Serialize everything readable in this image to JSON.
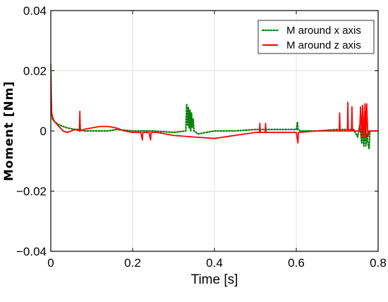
{
  "chart_data": {
    "type": "line",
    "xlabel": "Time [s]",
    "ylabel": "Moment [Nm]",
    "xlim": [
      0,
      0.8
    ],
    "ylim": [
      -0.04,
      0.04
    ],
    "x_ticks": [
      0,
      0.2,
      0.4,
      0.6,
      0.8
    ],
    "x_tick_labels": [
      "0",
      "0.2",
      "0.4",
      "0.6",
      "0.8"
    ],
    "y_ticks": [
      -0.04,
      -0.02,
      0,
      0.02,
      0.04
    ],
    "y_tick_labels": [
      "−0.04",
      "−0.02",
      "0",
      "0.02",
      "0.04"
    ],
    "grid": true,
    "legend_position": "top-right",
    "series": [
      {
        "name": "M around x axis",
        "color": "#008000",
        "style": "dotted",
        "x": [
          0,
          0.001,
          0.002,
          0.004,
          0.01,
          0.02,
          0.04,
          0.06,
          0.07,
          0.071,
          0.072,
          0.08,
          0.1,
          0.12,
          0.14,
          0.16,
          0.2,
          0.25,
          0.3,
          0.33,
          0.332,
          0.334,
          0.336,
          0.338,
          0.34,
          0.342,
          0.344,
          0.346,
          0.348,
          0.35,
          0.36,
          0.4,
          0.45,
          0.5,
          0.55,
          0.6,
          0.603,
          0.604,
          0.605,
          0.61,
          0.65,
          0.7,
          0.74,
          0.75,
          0.755,
          0.76,
          0.762,
          0.765,
          0.768,
          0.77,
          0.772,
          0.775,
          0.778,
          0.78,
          0.79,
          0.8
        ],
        "y": [
          0.022,
          0.012,
          0.006,
          0.004,
          0.003,
          0.002,
          0.001,
          0.0005,
          0.0005,
          0.004,
          0.0005,
          0.0,
          0.0,
          0.0,
          0.0,
          0.0005,
          0.0,
          0.0,
          -0.0005,
          0.0,
          0.009,
          0.002,
          0.008,
          0.001,
          0.007,
          0.0,
          0.006,
          0.001,
          0.004,
          0.0,
          -0.001,
          0.0,
          0.0,
          0.0005,
          0.0005,
          0.0005,
          0.003,
          0.0005,
          0.0005,
          0.0,
          0.0,
          0.0005,
          0.0005,
          -0.002,
          0.002,
          -0.004,
          0.003,
          -0.005,
          0.002,
          -0.005,
          -0.001,
          -0.004,
          -0.006,
          0.0,
          0.0,
          0.0
        ]
      },
      {
        "name": "M around z axis",
        "color": "#ff0000",
        "style": "solid",
        "x": [
          0,
          0.001,
          0.002,
          0.004,
          0.006,
          0.01,
          0.02,
          0.03,
          0.04,
          0.05,
          0.06,
          0.07,
          0.071,
          0.072,
          0.08,
          0.1,
          0.12,
          0.14,
          0.16,
          0.18,
          0.2,
          0.22,
          0.224,
          0.225,
          0.226,
          0.24,
          0.244,
          0.245,
          0.246,
          0.26,
          0.3,
          0.35,
          0.4,
          0.45,
          0.5,
          0.51,
          0.511,
          0.512,
          0.52,
          0.524,
          0.525,
          0.526,
          0.55,
          0.6,
          0.604,
          0.605,
          0.606,
          0.65,
          0.7,
          0.705,
          0.706,
          0.707,
          0.72,
          0.725,
          0.726,
          0.727,
          0.735,
          0.736,
          0.737,
          0.745,
          0.75,
          0.755,
          0.757,
          0.76,
          0.762,
          0.765,
          0.768,
          0.77,
          0.772,
          0.775,
          0.778,
          0.78,
          0.8
        ],
        "y": [
          0.018,
          0.01,
          0.006,
          0.005,
          0.004,
          0.003,
          0.0015,
          0.0,
          -0.0005,
          0.0,
          0.0005,
          0.0,
          0.0065,
          0.0,
          0.0005,
          0.001,
          0.0015,
          0.0015,
          0.001,
          0.0,
          -0.0005,
          -0.0005,
          -0.003,
          -0.0005,
          -0.0005,
          -0.0005,
          -0.003,
          -0.0005,
          -0.0005,
          -0.0005,
          -0.0015,
          -0.002,
          -0.0025,
          -0.0015,
          -0.0005,
          -0.0005,
          0.0025,
          -0.0005,
          -0.0005,
          -0.0005,
          0.0025,
          -0.0005,
          -0.0005,
          -0.0005,
          -0.004,
          -0.0005,
          -0.0005,
          0.0,
          0.0,
          0.0,
          0.006,
          0.0,
          0.0,
          0.0,
          0.0095,
          0.0,
          0.0,
          0.008,
          0.0,
          0.0,
          0.0,
          0.0,
          0.008,
          -0.002,
          0.0085,
          -0.002,
          0.009,
          -0.002,
          0.009,
          -0.002,
          0.0,
          0.0,
          0.0
        ]
      }
    ]
  }
}
